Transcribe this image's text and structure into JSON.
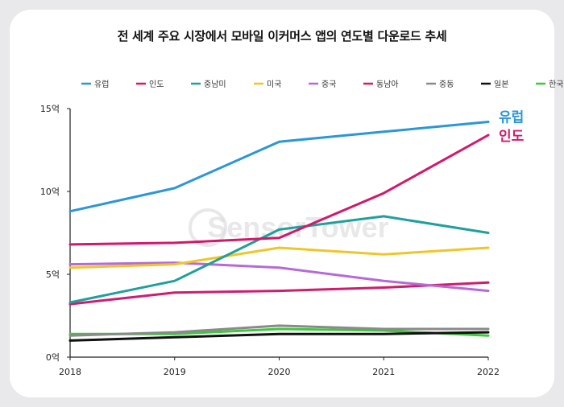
{
  "chart_data": {
    "type": "line",
    "title": "전 세계 주요 시장에서 모바일 이커머스 앱의 연도별 다운로드 추세",
    "x": [
      "2018",
      "2019",
      "2020",
      "2021",
      "2022"
    ],
    "y_ticks": [
      "0억",
      "5억",
      "10억",
      "15억"
    ],
    "ylim": [
      0,
      15
    ],
    "grid": false,
    "legend_position": "top",
    "watermark": "SensorTower",
    "series": [
      {
        "name": "유럽",
        "color": "#2b97d6",
        "values": [
          8.8,
          10.2,
          13.0,
          13.6,
          14.2
        ]
      },
      {
        "name": "인도",
        "color": "#d3186b",
        "values": [
          6.8,
          6.9,
          7.2,
          9.9,
          13.4
        ]
      },
      {
        "name": "중남미",
        "color": "#1fa09a",
        "values": [
          3.3,
          4.6,
          7.7,
          8.5,
          7.5
        ]
      },
      {
        "name": "미국",
        "color": "#efc62a",
        "values": [
          5.4,
          5.6,
          6.6,
          6.2,
          6.6
        ]
      },
      {
        "name": "중국",
        "color": "#b56ad8",
        "values": [
          5.6,
          5.7,
          5.4,
          4.6,
          4.0
        ]
      },
      {
        "name": "동남아",
        "color": "#cf1d6e",
        "values": [
          3.2,
          3.9,
          4.0,
          4.2,
          4.5
        ]
      },
      {
        "name": "중동",
        "color": "#8a8a8a",
        "values": [
          1.3,
          1.5,
          1.9,
          1.7,
          1.7
        ]
      },
      {
        "name": "일본",
        "color": "#111111",
        "values": [
          1.0,
          1.2,
          1.4,
          1.4,
          1.5
        ]
      },
      {
        "name": "한국",
        "color": "#3dc83d",
        "values": [
          1.4,
          1.4,
          1.7,
          1.6,
          1.3
        ]
      }
    ],
    "end_labels": [
      {
        "text": "유럽",
        "color": "#2b97d6"
      },
      {
        "text": "인도",
        "color": "#d3186b"
      }
    ]
  }
}
